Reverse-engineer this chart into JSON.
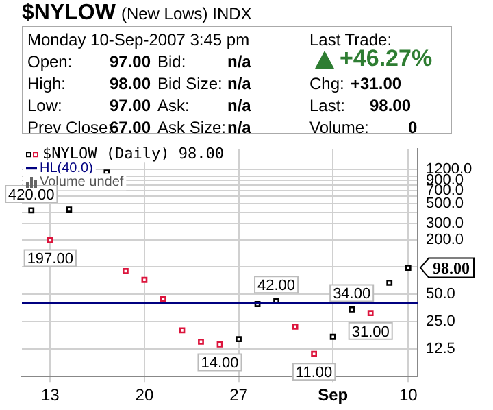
{
  "chart_data": [
    {
      "type": "other",
      "title": "$NYLOW",
      "subtitle": "(New Lows) INDX",
      "annotations": [
        "Monday  10-Sep-2007  3:45 pm",
        "Last Trade:",
        "Open:",
        "97.00",
        "Bid:",
        "n/a",
        "+46.27%",
        "High:",
        "98.00",
        "Bid Size:",
        "n/a",
        "Chg:",
        "+31.00",
        "Low:",
        "97.00",
        "Ask:",
        "n/a",
        "Last:",
        "98.00",
        "Prev Close:",
        "67.00",
        "Ask Size:",
        "n/a",
        "Volume:",
        "0"
      ]
    },
    {
      "type": "scatter",
      "categories": [
        null,
        "13",
        null,
        null,
        null,
        null,
        "20",
        null,
        null,
        null,
        null,
        "27",
        null,
        null,
        null,
        null,
        "Sep",
        null,
        null,
        null,
        "10"
      ],
      "series": [
        {
          "name": "$NYLOW (Daily) 98.00",
          "marker": "square",
          "values": [
            420,
            197,
            430,
            null,
            1100,
            90,
            72,
            44.5,
            20,
            15,
            14,
            16,
            39,
            42,
            22,
            11,
            17,
            34,
            31,
            67,
            98
          ],
          "colors": [
            "#000000",
            "#dc143c",
            "#000000",
            "#000000",
            "#000000",
            "#dc143c",
            "#dc143c",
            "#dc143c",
            "#dc143c",
            "#dc143c",
            "#dc143c",
            "#000000",
            "#000000",
            "#000000",
            "#dc143c",
            "#dc143c",
            "#000000",
            "#000000",
            "#dc143c",
            "#000000",
            "#000000"
          ],
          "value_labels": [
            "420.00",
            "197.00",
            null,
            null,
            null,
            null,
            null,
            null,
            null,
            null,
            "14.00",
            null,
            null,
            "42.00",
            null,
            "11.00",
            null,
            "34.00",
            "31.00",
            null,
            "98.00"
          ]
        }
      ],
      "log": "y",
      "ylim": [
        6.2,
        2000
      ],
      "yticks": [
        {
          "value": 12.5,
          "label": "12.5"
        },
        {
          "value": 25,
          "label": "25.0"
        },
        {
          "value": 50,
          "label": "50.0"
        },
        {
          "value": 100,
          "label": null
        },
        {
          "value": 200,
          "label": "200.0"
        },
        {
          "value": 300,
          "label": "300.0"
        },
        {
          "value": 400,
          "label": null
        },
        {
          "value": 500,
          "label": "500.0"
        },
        {
          "value": 600,
          "label": null
        },
        {
          "value": 700,
          "label": "700.0"
        },
        {
          "value": 800,
          "label": null
        },
        {
          "value": 900,
          "label": "900.0"
        },
        {
          "value": 1000,
          "label": null
        },
        {
          "value": 1200,
          "label": "1200.0"
        }
      ],
      "ref_lines": [
        {
          "axis": "y",
          "value": 40,
          "label": "HL(40.0)",
          "color": "#000080"
        }
      ],
      "annotations": [
        "Volume undef"
      ],
      "grid": true,
      "legend": "top left"
    }
  ]
}
